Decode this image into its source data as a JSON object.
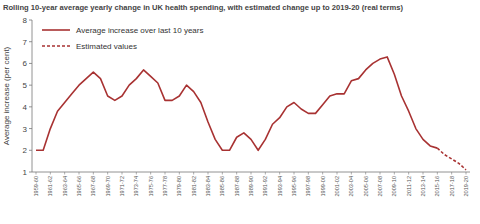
{
  "chart_data": {
    "type": "line",
    "title": "Rolling 10-year average yearly change in UK health spending, with estimated change up to 2019-20 (real terms)",
    "y_label": "Average increase (per cent)",
    "categories": [
      "1959-60",
      null,
      "1961-62",
      null,
      "1963-64",
      null,
      "1965-66",
      null,
      "1967-68",
      null,
      "1969-70",
      null,
      "1971-72",
      null,
      "1973-74",
      null,
      "1975-76",
      null,
      "1977-78",
      null,
      "1979-80",
      null,
      "1981-82",
      null,
      "1983-84",
      null,
      "1985-86",
      null,
      "1987-88",
      null,
      "1989-90",
      null,
      "1991-92",
      null,
      "1993-94",
      null,
      "1995-96",
      null,
      "1997-98",
      null,
      "1999-00",
      null,
      "2001-02",
      null,
      "2003-04",
      null,
      "2005-06",
      null,
      "2007-08",
      null,
      "2009-10",
      null,
      "2011-12",
      null,
      "2013-14",
      null,
      "2015-16",
      null,
      "2017-18",
      null,
      "2019-20"
    ],
    "series": [
      {
        "name": "Average increase over last 10 years",
        "color": "#a83232",
        "line_style": "solid",
        "values": [
          2.0,
          2.0,
          3.0,
          3.8,
          4.2,
          4.6,
          5.0,
          5.3,
          5.6,
          5.3,
          4.5,
          4.3,
          4.5,
          5.0,
          5.3,
          5.7,
          5.4,
          5.1,
          4.3,
          4.3,
          4.5,
          5.0,
          4.7,
          4.2,
          3.3,
          2.5,
          2.0,
          2.0,
          2.6,
          2.8,
          2.5,
          2.0,
          2.5,
          3.2,
          3.5,
          4.0,
          4.2,
          3.9,
          3.7,
          3.7,
          4.1,
          4.5,
          4.6,
          4.6,
          5.2,
          5.3,
          5.7,
          6.0,
          6.2,
          6.3,
          5.5,
          4.5,
          3.8,
          3.0,
          2.5,
          2.2,
          2.1,
          null,
          null,
          null,
          null
        ]
      },
      {
        "name": "Estimated values",
        "color": "#a83232",
        "line_style": "dashed",
        "values": [
          null,
          null,
          null,
          null,
          null,
          null,
          null,
          null,
          null,
          null,
          null,
          null,
          null,
          null,
          null,
          null,
          null,
          null,
          null,
          null,
          null,
          null,
          null,
          null,
          null,
          null,
          null,
          null,
          null,
          null,
          null,
          null,
          null,
          null,
          null,
          null,
          null,
          null,
          null,
          null,
          null,
          null,
          null,
          null,
          null,
          null,
          null,
          null,
          null,
          null,
          null,
          null,
          null,
          null,
          null,
          null,
          2.1,
          1.8,
          1.6,
          1.4,
          1.1
        ]
      }
    ],
    "ylim": [
      1,
      8
    ],
    "yticks": [
      1,
      2,
      3,
      4,
      5,
      6,
      7,
      8
    ],
    "grid": false,
    "legend": "top-left"
  }
}
